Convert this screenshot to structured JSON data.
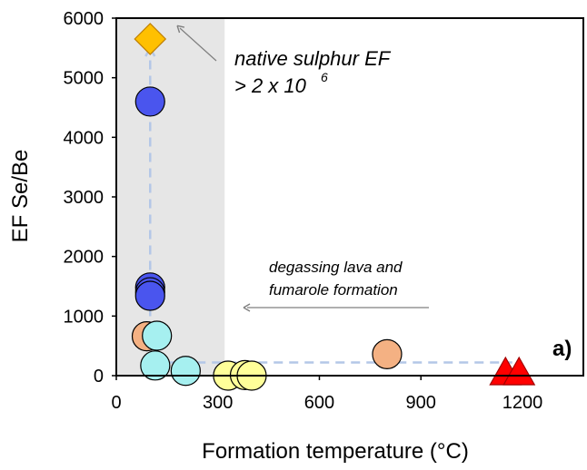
{
  "chart_data": {
    "type": "scatter",
    "xlabel": "Formation temperature (°C)",
    "ylabel": "EF Se/Be",
    "xlim": [
      0,
      1380
    ],
    "ylim": [
      0,
      6000
    ],
    "x_ticks": [
      0,
      300,
      600,
      900,
      1200
    ],
    "y_ticks": [
      0,
      1000,
      2000,
      3000,
      4000,
      5000,
      6000
    ],
    "panel_label": "a)",
    "shaded_region": {
      "x_from": 0,
      "x_to": 320,
      "color": "#e6e6e6"
    },
    "guide_lines": {
      "color": "#b4c7e7",
      "horizontal": {
        "y": 220,
        "x_from": 100,
        "x_to": 1170
      },
      "vertical": {
        "x": 100,
        "y_from": 220,
        "y_to": 5650
      }
    },
    "annotations": {
      "sulphur_line1": "native sulphur EF",
      "sulphur_line2": "> 2 x 10",
      "sulphur_exp": "6",
      "degassing_line1": "degassing lava and",
      "degassing_line2": "fumarole formation"
    },
    "series": [
      {
        "marker": "circle",
        "color": "#4a55ee",
        "points": [
          [
            100,
            4600
          ],
          [
            100,
            1480
          ],
          [
            100,
            1400
          ],
          [
            100,
            1340
          ]
        ]
      },
      {
        "marker": "circle",
        "color": "#f4b183",
        "points": [
          [
            90,
            660
          ],
          [
            800,
            360
          ]
        ]
      },
      {
        "marker": "circle",
        "color": "#a6f0f0",
        "points": [
          [
            120,
            670
          ],
          [
            115,
            170
          ],
          [
            205,
            80
          ]
        ]
      },
      {
        "marker": "circle",
        "color": "#ffff99",
        "points": [
          [
            330,
            0
          ],
          [
            380,
            10
          ],
          [
            400,
            0
          ]
        ]
      },
      {
        "marker": "triangle",
        "color": "#ff0000",
        "points": [
          [
            1150,
            0
          ],
          [
            1190,
            0
          ]
        ]
      },
      {
        "marker": "diamond",
        "color": "#ffc000",
        "points": [
          [
            100,
            5650
          ]
        ]
      }
    ]
  }
}
